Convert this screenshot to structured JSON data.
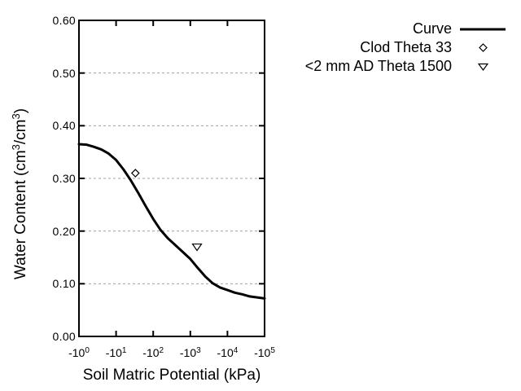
{
  "figure": {
    "background": "#ffffff",
    "foreground": "#000000",
    "grid_color": "#a0a0a0"
  },
  "chart_data": {
    "type": "line",
    "title": "",
    "xlabel": "Soil Matric Potential (kPa)",
    "ylabel": "Water Content (cm³/cm³)",
    "ylabel_parts": [
      "Water Content (cm",
      "3",
      "/cm",
      "3",
      ")"
    ],
    "x_scale": "negative-log10",
    "x_decade_range": [
      0,
      5
    ],
    "x_ticks": [
      {
        "base": "-10",
        "exp": "0",
        "decade": 0
      },
      {
        "base": "-10",
        "exp": "1",
        "decade": 1
      },
      {
        "base": "-10",
        "exp": "2",
        "decade": 2
      },
      {
        "base": "-10",
        "exp": "3",
        "decade": 3
      },
      {
        "base": "-10",
        "exp": "4",
        "decade": 4
      },
      {
        "base": "-10",
        "exp": "5",
        "decade": 5
      }
    ],
    "ylim": [
      0.0,
      0.6
    ],
    "y_ticks": [
      {
        "label": "0.00",
        "value": 0.0
      },
      {
        "label": "0.10",
        "value": 0.1
      },
      {
        "label": "0.20",
        "value": 0.2
      },
      {
        "label": "0.30",
        "value": 0.3
      },
      {
        "label": "0.40",
        "value": 0.4
      },
      {
        "label": "0.50",
        "value": 0.5
      },
      {
        "label": "0.60",
        "value": 0.6
      }
    ],
    "grid": "horizontal-dashed",
    "legend_position": "outside-top-right",
    "series": [
      {
        "name": "Curve",
        "style": "solid-line",
        "color": "#000000",
        "points_log10absx_theta": [
          [
            0.0,
            0.365
          ],
          [
            0.2,
            0.364
          ],
          [
            0.4,
            0.36
          ],
          [
            0.6,
            0.355
          ],
          [
            0.8,
            0.347
          ],
          [
            1.0,
            0.335
          ],
          [
            1.2,
            0.317
          ],
          [
            1.4,
            0.296
          ],
          [
            1.6,
            0.272
          ],
          [
            1.8,
            0.247
          ],
          [
            2.0,
            0.223
          ],
          [
            2.2,
            0.202
          ],
          [
            2.4,
            0.186
          ],
          [
            2.6,
            0.173
          ],
          [
            2.8,
            0.16
          ],
          [
            3.0,
            0.147
          ],
          [
            3.2,
            0.13
          ],
          [
            3.4,
            0.114
          ],
          [
            3.6,
            0.101
          ],
          [
            3.8,
            0.093
          ],
          [
            4.0,
            0.088
          ],
          [
            4.2,
            0.083
          ],
          [
            4.4,
            0.08
          ],
          [
            4.6,
            0.076
          ],
          [
            4.8,
            0.074
          ],
          [
            5.0,
            0.072
          ]
        ]
      }
    ],
    "points": [
      {
        "name": "Clod Theta 33",
        "marker": "diamond-open",
        "x_kpa": -33,
        "log10_abs_x": 1.52,
        "theta": 0.31
      },
      {
        "name": "<2 mm AD Theta 1500",
        "marker": "triangle-down-open",
        "x_kpa": -1500,
        "log10_abs_x": 3.18,
        "theta": 0.17
      }
    ],
    "legend": [
      {
        "label": "Curve",
        "sample": "line"
      },
      {
        "label": "Clod Theta 33",
        "sample": "diamond"
      },
      {
        "label": "<2 mm AD Theta 1500",
        "sample": "triangle-down"
      }
    ]
  }
}
